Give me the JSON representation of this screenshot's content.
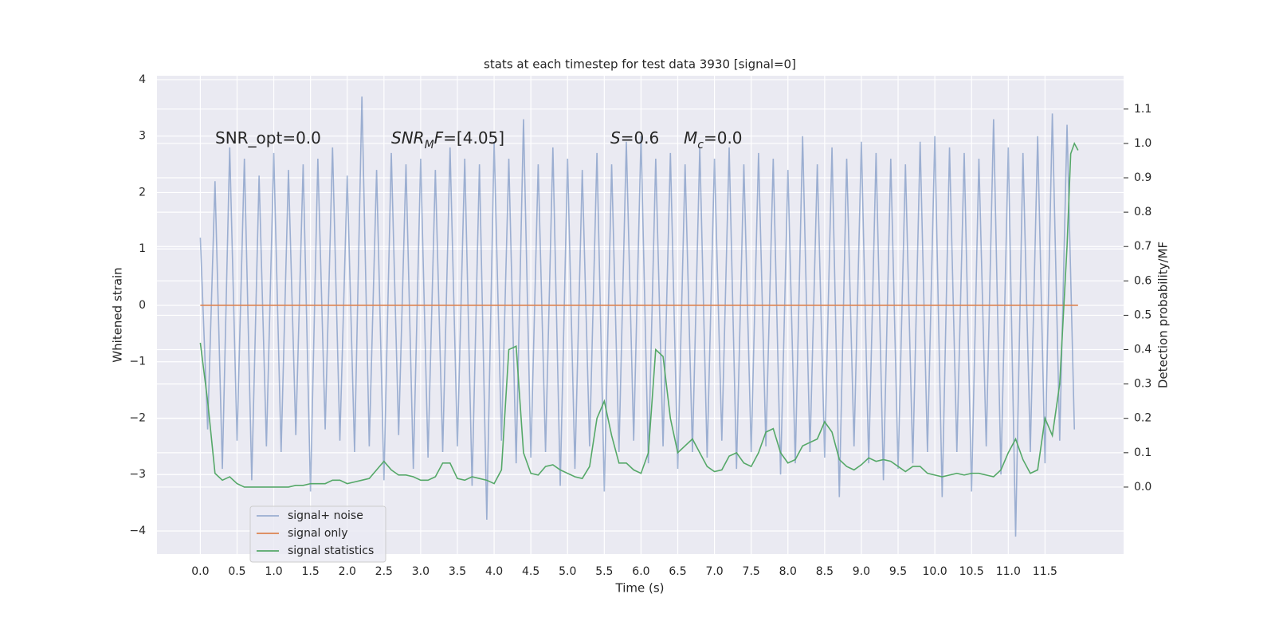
{
  "chart_data": {
    "type": "line",
    "title": "stats at each timestep for test data 3930 [signal=0]",
    "x_label": "Time (s)",
    "y_label": "Whitened strain",
    "y2_label": "Detection probability/MF",
    "grid": true,
    "legend": "lower left",
    "xlim": [
      -0.59,
      12.57
    ],
    "ylim": [
      -4.41,
      4.07
    ],
    "y2lim": [
      -0.195,
      1.197
    ],
    "xticks": [
      {
        "value": 0,
        "label": "0.0"
      },
      0.5,
      {
        "value": 1,
        "label": "1.0"
      },
      1.5,
      {
        "value": 2,
        "label": "2.0"
      },
      2.5,
      {
        "value": 3,
        "label": "3.0"
      },
      3.5,
      {
        "value": 4,
        "label": "4.0"
      },
      4.5,
      {
        "value": 5,
        "label": "5.0"
      },
      5.5,
      {
        "value": 6,
        "label": "6.0"
      },
      6.5,
      {
        "value": 7,
        "label": "7.0"
      },
      7.5,
      {
        "value": 8,
        "label": "8.0"
      },
      8.5,
      {
        "value": 9,
        "label": "9.0"
      },
      9.5,
      {
        "value": 10,
        "label": "10.0"
      },
      10.5,
      {
        "value": 11,
        "label": "11.0"
      },
      11.5
    ],
    "yticks": [
      {
        "value": -4,
        "label": "−4"
      },
      {
        "value": -3,
        "label": "−3"
      },
      {
        "value": -2,
        "label": "−2"
      },
      {
        "value": -1,
        "label": "−1"
      },
      0,
      1,
      2,
      3,
      4
    ],
    "y2ticks": [
      {
        "value": 0,
        "label": "0.0"
      },
      0.1,
      0.2,
      0.3,
      0.4,
      0.5,
      0.6,
      0.7,
      0.8,
      0.9,
      {
        "value": 1,
        "label": "1.0"
      },
      1.1
    ],
    "annotations": [
      {
        "parts": [
          {
            "text": "SNR_opt=0.0",
            "style": "normal"
          }
        ]
      },
      {
        "parts": [
          {
            "text": "SNR",
            "style": "italic"
          },
          {
            "text": "M",
            "style": "sub"
          },
          {
            "text": "F",
            "style": "italic"
          },
          {
            "text": "=[4.05]",
            "style": "normal"
          }
        ]
      },
      {
        "parts": [
          {
            "text": "S",
            "style": "italic"
          },
          {
            "text": "=0.6",
            "style": "normal"
          }
        ]
      },
      {
        "parts": [
          {
            "text": "M",
            "style": "italic"
          },
          {
            "text": "c",
            "style": "sub"
          },
          {
            "text": "=0.0",
            "style": "normal"
          }
        ]
      }
    ],
    "series": [
      {
        "name": "signal+ noise",
        "color": "#4c72b0",
        "opacity": 0.5,
        "x": [
          0,
          0.1,
          0.2,
          0.3,
          0.4,
          0.5,
          0.6,
          0.7,
          0.8,
          0.9,
          1,
          1.1,
          1.2,
          1.3,
          1.4,
          1.5,
          1.6,
          1.7,
          1.8,
          1.9,
          2,
          2.1,
          2.2,
          2.3,
          2.4,
          2.5,
          2.6,
          2.7,
          2.8,
          2.9,
          3,
          3.1,
          3.2,
          3.3,
          3.4,
          3.5,
          3.6,
          3.7,
          3.8,
          3.9,
          4,
          4.1,
          4.2,
          4.3,
          4.4,
          4.5,
          4.6,
          4.7,
          4.8,
          4.9,
          5,
          5.1,
          5.2,
          5.3,
          5.4,
          5.5,
          5.6,
          5.7,
          5.8,
          5.9,
          6,
          6.1,
          6.2,
          6.3,
          6.4,
          6.5,
          6.6,
          6.7,
          6.8,
          6.9,
          7,
          7.1,
          7.2,
          7.3,
          7.4,
          7.5,
          7.6,
          7.7,
          7.8,
          7.9,
          8,
          8.1,
          8.2,
          8.3,
          8.4,
          8.5,
          8.6,
          8.7,
          8.8,
          8.9,
          9,
          9.1,
          9.2,
          9.3,
          9.4,
          9.5,
          9.6,
          9.7,
          9.8,
          9.9,
          10,
          10.1,
          10.2,
          10.3,
          10.4,
          10.5,
          10.6,
          10.7,
          10.8,
          10.9,
          11,
          11.1,
          11.2,
          11.3,
          11.4,
          11.5,
          11.6,
          11.7,
          11.8,
          11.9
        ],
        "values": [
          1.2,
          -2.2,
          2.2,
          -2.9,
          2.8,
          -2.4,
          2.6,
          -3.1,
          2.3,
          -2.5,
          2.7,
          -2.6,
          2.4,
          -2.3,
          2.5,
          -3.3,
          2.6,
          -2.2,
          2.8,
          -2.4,
          2.3,
          -2.6,
          3.7,
          -2.5,
          2.4,
          -3.1,
          2.7,
          -2.3,
          2.5,
          -2.9,
          2.6,
          -2.7,
          2.4,
          -2.6,
          2.8,
          -2.5,
          2.6,
          -3.2,
          2.5,
          -3.8,
          2.9,
          -2.4,
          2.6,
          -2.8,
          3.3,
          -2.7,
          2.5,
          -2.6,
          2.8,
          -3.2,
          2.6,
          -2.9,
          2.4,
          -2.5,
          2.7,
          -3.3,
          2.5,
          -2.6,
          2.9,
          -2.4,
          3.0,
          -2.8,
          2.6,
          -2.5,
          2.7,
          -2.9,
          2.5,
          -2.6,
          2.8,
          -2.7,
          2.6,
          -2.4,
          2.8,
          -2.9,
          2.5,
          -2.6,
          2.7,
          -2.5,
          2.6,
          -3.0,
          2.4,
          -2.8,
          3.0,
          -2.6,
          2.5,
          -2.7,
          2.8,
          -3.4,
          2.6,
          -2.5,
          2.9,
          -2.8,
          2.7,
          -3.1,
          2.6,
          -2.9,
          2.5,
          -2.8,
          2.9,
          -2.6,
          3.0,
          -3.4,
          2.8,
          -2.6,
          2.7,
          -3.3,
          2.6,
          -2.5,
          3.3,
          -3.0,
          2.8,
          -4.1,
          2.7,
          -2.6,
          3.0,
          -2.8,
          3.4,
          -2.4,
          3.2,
          -2.2
        ]
      },
      {
        "name": "signal only",
        "color": "#dd8452",
        "opacity": 1,
        "x": [
          0,
          11.95
        ],
        "values": [
          0,
          0
        ]
      },
      {
        "name": "signal statistics",
        "color": "#55a868",
        "opacity": 1,
        "axis": "y2",
        "x": [
          0,
          0.1,
          0.2,
          0.3,
          0.4,
          0.5,
          0.6,
          0.7,
          0.8,
          0.9,
          1,
          1.1,
          1.2,
          1.3,
          1.4,
          1.5,
          1.6,
          1.7,
          1.8,
          1.9,
          2,
          2.1,
          2.2,
          2.3,
          2.4,
          2.5,
          2.6,
          2.7,
          2.8,
          2.9,
          3,
          3.1,
          3.2,
          3.3,
          3.4,
          3.5,
          3.6,
          3.7,
          3.8,
          3.9,
          4,
          4.1,
          4.2,
          4.3,
          4.4,
          4.5,
          4.6,
          4.7,
          4.8,
          4.9,
          5,
          5.1,
          5.2,
          5.3,
          5.4,
          5.5,
          5.6,
          5.7,
          5.8,
          5.9,
          6,
          6.1,
          6.2,
          6.3,
          6.4,
          6.5,
          6.6,
          6.7,
          6.8,
          6.9,
          7,
          7.1,
          7.2,
          7.3,
          7.4,
          7.5,
          7.6,
          7.7,
          7.8,
          7.9,
          8,
          8.1,
          8.2,
          8.3,
          8.4,
          8.5,
          8.6,
          8.7,
          8.8,
          8.9,
          9,
          9.1,
          9.2,
          9.3,
          9.4,
          9.5,
          9.6,
          9.7,
          9.8,
          9.9,
          10,
          10.1,
          10.2,
          10.3,
          10.4,
          10.5,
          10.6,
          10.7,
          10.8,
          10.9,
          11,
          11.1,
          11.2,
          11.3,
          11.4,
          11.5,
          11.6,
          11.7,
          11.8,
          11.85,
          11.9,
          11.95
        ],
        "values": [
          0.42,
          0.25,
          0.04,
          0.02,
          0.03,
          0.01,
          0,
          0,
          0,
          0,
          0,
          0,
          0,
          0.005,
          0.005,
          0.01,
          0.01,
          0.01,
          0.02,
          0.02,
          0.01,
          0.015,
          0.02,
          0.025,
          0.05,
          0.075,
          0.05,
          0.035,
          0.035,
          0.03,
          0.02,
          0.02,
          0.03,
          0.07,
          0.07,
          0.025,
          0.02,
          0.03,
          0.025,
          0.02,
          0.01,
          0.05,
          0.4,
          0.41,
          0.1,
          0.04,
          0.035,
          0.06,
          0.065,
          0.05,
          0.04,
          0.03,
          0.025,
          0.06,
          0.2,
          0.25,
          0.15,
          0.07,
          0.07,
          0.05,
          0.04,
          0.1,
          0.4,
          0.38,
          0.2,
          0.1,
          0.12,
          0.14,
          0.1,
          0.06,
          0.045,
          0.05,
          0.09,
          0.1,
          0.07,
          0.06,
          0.1,
          0.16,
          0.17,
          0.1,
          0.07,
          0.08,
          0.12,
          0.13,
          0.14,
          0.19,
          0.16,
          0.08,
          0.06,
          0.05,
          0.065,
          0.085,
          0.075,
          0.08,
          0.075,
          0.06,
          0.045,
          0.06,
          0.06,
          0.04,
          0.035,
          0.03,
          0.035,
          0.04,
          0.035,
          0.04,
          0.04,
          0.035,
          0.03,
          0.05,
          0.1,
          0.14,
          0.08,
          0.04,
          0.05,
          0.2,
          0.15,
          0.3,
          0.7,
          0.97,
          1.0,
          0.98
        ]
      }
    ]
  }
}
